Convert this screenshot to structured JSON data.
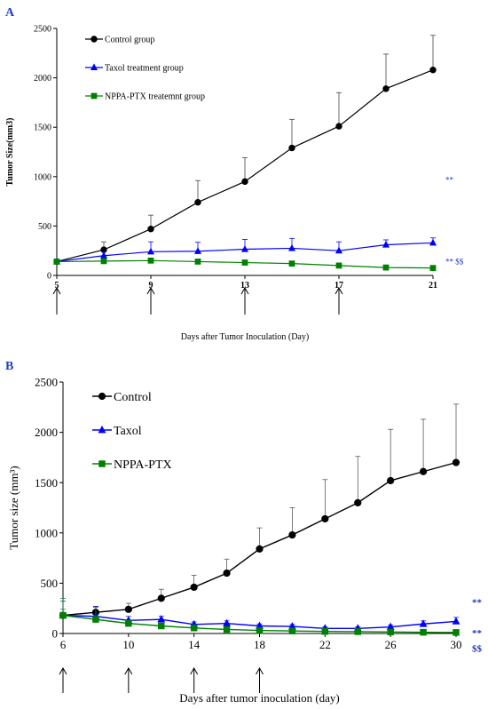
{
  "chart_data": [
    {
      "panel": "A",
      "type": "line",
      "title": "",
      "xlabel": "Days after Tumor Inoculation (Day)",
      "ylabel": "Tumor Size(mm3)",
      "xlim": [
        5,
        21
      ],
      "ylim": [
        0,
        2500
      ],
      "xticks": [
        5,
        9,
        13,
        17,
        21
      ],
      "yticks": [
        0,
        500,
        1000,
        1500,
        2000,
        2500
      ],
      "grid": false,
      "legend_position": "top-left",
      "arrow_days": [
        5,
        9,
        13,
        17
      ],
      "series": [
        {
          "name": "Control group",
          "color": "#000000",
          "marker": "circle",
          "x": [
            5,
            7,
            9,
            11,
            13,
            15,
            17,
            19,
            21
          ],
          "y": [
            140,
            260,
            470,
            740,
            950,
            1290,
            1510,
            1890,
            2080
          ],
          "error": [
            0,
            80,
            140,
            220,
            240,
            290,
            340,
            350,
            350
          ]
        },
        {
          "name": "Taxol treatment group",
          "color": "#0000ff",
          "marker": "triangle",
          "annotation": "**",
          "x": [
            5,
            7,
            9,
            11,
            13,
            15,
            17,
            19,
            21
          ],
          "y": [
            140,
            200,
            240,
            245,
            265,
            275,
            250,
            310,
            330
          ],
          "error": [
            0,
            40,
            100,
            90,
            100,
            100,
            90,
            50,
            50
          ]
        },
        {
          "name": "NPPA-PTX treatemnt group",
          "color": "#008000",
          "marker": "square",
          "annotation": "** $$",
          "x": [
            5,
            7,
            9,
            11,
            13,
            15,
            17,
            19,
            21
          ],
          "y": [
            140,
            145,
            150,
            140,
            130,
            120,
            100,
            80,
            75
          ],
          "error": [
            0,
            15,
            20,
            20,
            25,
            20,
            20,
            15,
            15
          ]
        }
      ]
    },
    {
      "panel": "B",
      "type": "line",
      "title": "",
      "xlabel": "Days after tumor inoculation (day)",
      "ylabel": "Tumor size (mm³)",
      "xlim": [
        6,
        30
      ],
      "ylim": [
        0,
        2500
      ],
      "xticks": [
        6,
        10,
        14,
        18,
        22,
        26,
        30
      ],
      "yticks": [
        0,
        500,
        1000,
        1500,
        2000,
        2500
      ],
      "grid": false,
      "legend_position": "top-left",
      "arrow_days": [
        6,
        10,
        14,
        18
      ],
      "series": [
        {
          "name": "Control",
          "color": "#000000",
          "marker": "circle",
          "x": [
            6,
            8,
            10,
            12,
            14,
            16,
            18,
            20,
            22,
            24,
            26,
            28,
            30
          ],
          "y": [
            180,
            210,
            240,
            350,
            460,
            600,
            840,
            980,
            1140,
            1300,
            1520,
            1610,
            1700
          ],
          "error": [
            60,
            60,
            60,
            90,
            120,
            140,
            210,
            270,
            390,
            460,
            510,
            520,
            580
          ]
        },
        {
          "name": "Taxol",
          "color": "#0000ff",
          "marker": "triangle",
          "annotation": "**",
          "x": [
            6,
            8,
            10,
            12,
            14,
            16,
            18,
            20,
            22,
            24,
            26,
            28,
            30
          ],
          "y": [
            180,
            170,
            130,
            140,
            90,
            100,
            75,
            70,
            50,
            50,
            65,
            95,
            120
          ],
          "error": [
            140,
            100,
            40,
            30,
            25,
            25,
            20,
            20,
            15,
            15,
            20,
            30,
            40
          ]
        },
        {
          "name": "NPPA-PTX",
          "color": "#008000",
          "marker": "square",
          "annotation": "**\n$$",
          "x": [
            6,
            8,
            10,
            12,
            14,
            16,
            18,
            20,
            22,
            24,
            26,
            28,
            30
          ],
          "y": [
            180,
            140,
            100,
            75,
            55,
            40,
            30,
            25,
            20,
            18,
            15,
            12,
            10
          ],
          "error": [
            170,
            120,
            30,
            20,
            15,
            12,
            10,
            8,
            6,
            5,
            5,
            5,
            5
          ]
        }
      ]
    }
  ],
  "panels": [
    {
      "label": "A"
    },
    {
      "label": "B"
    }
  ]
}
